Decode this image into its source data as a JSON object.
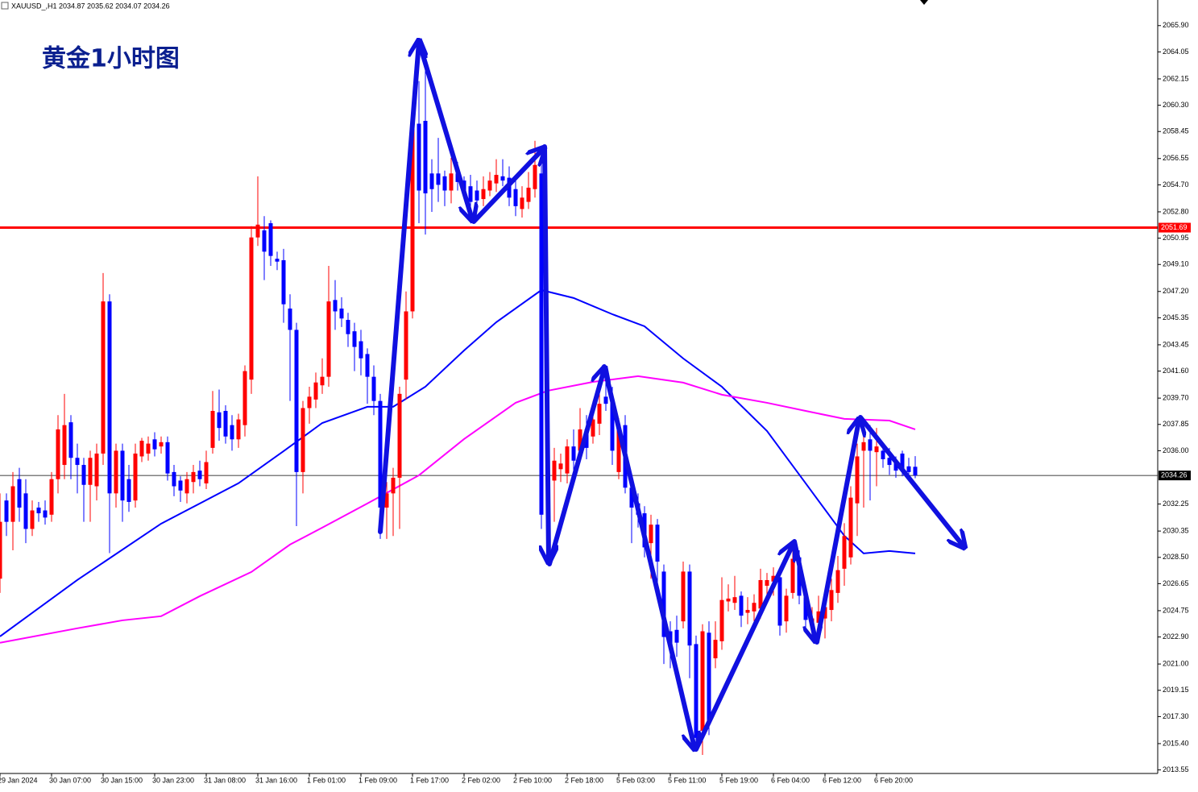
{
  "chart_data": {
    "type": "candlestick",
    "title": "XAUUSD_,H1 2034.87 2035.62 2034.07 2034.26",
    "annotation": "黄金1小时图",
    "up_color": "#ff0000",
    "down_color": "#0000ff",
    "categories": [
      "29 Jan 2024",
      null,
      null,
      null,
      null,
      null,
      null,
      null,
      "30 Jan 07:00",
      null,
      null,
      null,
      null,
      null,
      null,
      null,
      "30 Jan 15:00",
      null,
      null,
      null,
      null,
      null,
      null,
      null,
      "30 Jan 23:00",
      null,
      null,
      null,
      null,
      null,
      null,
      null,
      "31 Jan 08:00",
      null,
      null,
      null,
      null,
      null,
      null,
      null,
      "31 Jan 16:00",
      null,
      null,
      null,
      null,
      null,
      null,
      null,
      "1 Feb 01:00",
      null,
      null,
      null,
      null,
      null,
      null,
      null,
      "1 Feb 09:00",
      null,
      null,
      null,
      null,
      null,
      null,
      null,
      "1 Feb 17:00",
      null,
      null,
      null,
      null,
      null,
      null,
      null,
      "2 Feb 02:00",
      null,
      null,
      null,
      null,
      null,
      null,
      null,
      "2 Feb 10:00",
      null,
      null,
      null,
      null,
      null,
      null,
      null,
      "2 Feb 18:00",
      null,
      null,
      null,
      null,
      null,
      null,
      null,
      "5 Feb 03:00",
      null,
      null,
      null,
      null,
      null,
      null,
      null,
      "5 Feb 11:00",
      null,
      null,
      null,
      null,
      null,
      null,
      null,
      "5 Feb 19:00",
      null,
      null,
      null,
      null,
      null,
      null,
      null,
      "6 Feb 04:00",
      null,
      null,
      null,
      null,
      null,
      null,
      null,
      "6 Feb 12:00",
      null,
      null,
      null,
      null,
      null,
      null,
      null,
      "6 Feb 20:00",
      null,
      null,
      null,
      null,
      null,
      null
    ],
    "ohlc": [
      [
        2027,
        2033,
        2026,
        2031
      ],
      [
        2032.5,
        2033,
        2030,
        2031
      ],
      [
        2031,
        2034.5,
        2029,
        2033.5
      ],
      [
        2034,
        2034.8,
        2031,
        2032
      ],
      [
        2033,
        2034,
        2029.5,
        2030.5
      ],
      [
        2030.5,
        2032.5,
        2030,
        2031.8
      ],
      [
        2032,
        2032.4,
        2031,
        2031.6
      ],
      [
        2031.8,
        2032.5,
        2030.8,
        2031.3
      ],
      [
        2031.5,
        2034.5,
        2031,
        2034
      ],
      [
        2034,
        2038.5,
        2033,
        2037.5
      ],
      [
        2035,
        2040,
        2034,
        2037.8
      ],
      [
        2038,
        2038.5,
        2034,
        2035.5
      ],
      [
        2035.5,
        2036.5,
        2033,
        2035
      ],
      [
        2035,
        2035.5,
        2031,
        2033.6
      ],
      [
        2033.6,
        2036,
        2031,
        2035.5
      ],
      [
        2033.5,
        2036.5,
        2032.5,
        2035.8
      ],
      [
        2035.8,
        2048.5,
        2035,
        2046.5
      ],
      [
        2046.5,
        2047,
        2028.8,
        2033
      ],
      [
        2033,
        2036.5,
        2032,
        2036
      ],
      [
        2036,
        2036.5,
        2031,
        2032.5
      ],
      [
        2034,
        2035,
        2031.7,
        2032.4
      ],
      [
        2032.5,
        2036.5,
        2032,
        2035.8
      ],
      [
        2035.6,
        2036.9,
        2035.2,
        2036.7
      ],
      [
        2035.8,
        2037,
        2035.3,
        2036.5
      ],
      [
        2036.8,
        2037.3,
        2035.6,
        2036.1
      ],
      [
        2036.3,
        2037,
        2035.8,
        2036.6
      ],
      [
        2036.6,
        2037,
        2033.9,
        2034.4
      ],
      [
        2034.5,
        2035,
        2032.8,
        2033.5
      ],
      [
        2033.9,
        2034.2,
        2032.4,
        2033.2
      ],
      [
        2033,
        2034.5,
        2032.3,
        2034
      ],
      [
        2033.8,
        2035,
        2033,
        2034.5
      ],
      [
        2034.6,
        2035.3,
        2033.5,
        2034
      ],
      [
        2033.7,
        2036,
        2033.3,
        2035.2
      ],
      [
        2036.2,
        2040.2,
        2035.8,
        2038.8
      ],
      [
        2038.7,
        2040.3,
        2036.7,
        2037.6
      ],
      [
        2038.8,
        2039.2,
        2036.5,
        2037
      ],
      [
        2037.8,
        2038.5,
        2036,
        2036.8
      ],
      [
        2036.8,
        2038.6,
        2036.2,
        2038.2
      ],
      [
        2037.8,
        2042,
        2037,
        2041.6
      ],
      [
        2041,
        2051.8,
        2040,
        2051
      ],
      [
        2051,
        2055.3,
        2050.4,
        2051.9
      ],
      [
        2051.5,
        2052.5,
        2048,
        2050
      ],
      [
        2052,
        2052.2,
        2049,
        2049.7
      ],
      [
        2049.5,
        2050,
        2048.7,
        2049.3
      ],
      [
        2049.4,
        2050.2,
        2045,
        2046.3
      ],
      [
        2046,
        2047,
        2039.5,
        2044.5
      ],
      [
        2044.5,
        2045,
        2030.7,
        2034.5
      ],
      [
        2034.5,
        2039.5,
        2033,
        2039
      ],
      [
        2039,
        2040.5,
        2037.9,
        2039.8
      ],
      [
        2039.6,
        2041.5,
        2039,
        2040.8
      ],
      [
        2040.6,
        2042.5,
        2040,
        2041.2
      ],
      [
        2041.2,
        2049,
        2040.5,
        2046.5
      ],
      [
        2046.6,
        2048,
        2044.5,
        2045.8
      ],
      [
        2046,
        2046.8,
        2044.7,
        2045.3
      ],
      [
        2045.2,
        2045.7,
        2043.3,
        2044.2
      ],
      [
        2044.4,
        2045,
        2041.6,
        2043.3
      ],
      [
        2043.7,
        2044.5,
        2041.3,
        2042.5
      ],
      [
        2042.8,
        2043.2,
        2039.3,
        2041.2
      ],
      [
        2041.2,
        2042,
        2038.5,
        2039.5
      ],
      [
        2039.5,
        2040,
        2029.8,
        2032
      ],
      [
        2032,
        2033.8,
        2029.8,
        2033
      ],
      [
        2033,
        2034.8,
        2030,
        2034.1
      ],
      [
        2034.1,
        2040.5,
        2030.5,
        2040
      ],
      [
        2041,
        2047.2,
        2039.6,
        2045.8
      ],
      [
        2045.8,
        2060.3,
        2045.3,
        2059.2
      ],
      [
        2059,
        2062,
        2052,
        2054.3
      ],
      [
        2059.2,
        2063.5,
        2051.2,
        2054.1
      ],
      [
        2055.5,
        2056.5,
        2052.8,
        2054.4
      ],
      [
        2055.5,
        2058,
        2053.5,
        2054.7
      ],
      [
        2055.3,
        2055.7,
        2053.2,
        2054.3
      ],
      [
        2054.3,
        2056.6,
        2053.4,
        2055.5
      ],
      [
        2055.5,
        2056.3,
        2054.3,
        2054.9
      ],
      [
        2055,
        2055.3,
        2053.8,
        2054.3
      ],
      [
        2054.6,
        2055.4,
        2053,
        2053.5
      ],
      [
        2054.3,
        2055,
        2053,
        2053.6
      ],
      [
        2053.7,
        2055.3,
        2053.2,
        2054.4
      ],
      [
        2054.3,
        2055.6,
        2053.9,
        2055
      ],
      [
        2054.8,
        2056.5,
        2054.2,
        2055.4
      ],
      [
        2055.3,
        2056.5,
        2054.6,
        2055
      ],
      [
        2055.2,
        2056,
        2053.2,
        2053.8
      ],
      [
        2054.4,
        2055,
        2052.5,
        2053.2
      ],
      [
        2053,
        2054.6,
        2052.4,
        2053.8
      ],
      [
        2053.5,
        2055.6,
        2053,
        2054.5
      ],
      [
        2054.4,
        2057.8,
        2053.8,
        2056.1
      ],
      [
        2055.5,
        2057,
        2030.5,
        2031.5
      ],
      [
        2034.8,
        2036.2,
        2030.2,
        2031.5
      ],
      [
        2033.9,
        2036.2,
        2031,
        2035.3
      ],
      [
        2034.7,
        2035.8,
        2033.8,
        2035.1
      ],
      [
        2034.4,
        2036.8,
        2033.7,
        2036.3
      ],
      [
        2036.3,
        2037.5,
        2034.5,
        2035.3
      ],
      [
        2036,
        2039,
        2035.5,
        2037.5
      ],
      [
        2037.5,
        2038.5,
        2035.4,
        2036.2
      ],
      [
        2037,
        2039.5,
        2036.5,
        2038.2
      ],
      [
        2037.9,
        2041,
        2037.1,
        2039.3
      ],
      [
        2039.8,
        2041.8,
        2038.8,
        2039.3
      ],
      [
        2039.6,
        2040.5,
        2035,
        2036
      ],
      [
        2034.5,
        2038.3,
        2034,
        2037.8
      ],
      [
        2037.8,
        2038.5,
        2033,
        2033.4
      ],
      [
        2033.4,
        2034,
        2029.5,
        2032
      ],
      [
        2032.3,
        2033,
        2030.6,
        2031.5
      ],
      [
        2031.6,
        2032.1,
        2028.5,
        2029.2
      ],
      [
        2029.5,
        2031.5,
        2027,
        2030.8
      ],
      [
        2030.8,
        2031.2,
        2026.6,
        2028.2
      ],
      [
        2027.5,
        2028,
        2021,
        2022.9
      ],
      [
        2023.3,
        2024,
        2020.7,
        2022.3
      ],
      [
        2023.4,
        2024.4,
        2021.5,
        2022.5
      ],
      [
        2024,
        2028.2,
        2023.5,
        2027.5
      ],
      [
        2027.5,
        2028,
        2020,
        2022.3
      ],
      [
        2022.4,
        2023,
        2015,
        2015.8
      ],
      [
        2016.3,
        2023.8,
        2014.6,
        2023.3
      ],
      [
        2023.2,
        2024,
        2016,
        2016.8
      ],
      [
        2021.4,
        2024,
        2020.7,
        2022.7
      ],
      [
        2022.6,
        2027.1,
        2022,
        2025.5
      ],
      [
        2025.4,
        2026.6,
        2024.7,
        2025.6
      ],
      [
        2025.3,
        2027.2,
        2024.8,
        2025.7
      ],
      [
        2025.8,
        2026.1,
        2023.6,
        2024.4
      ],
      [
        2024.6,
        2025.7,
        2023.8,
        2024.8
      ],
      [
        2024.7,
        2025.9,
        2024,
        2025.3
      ],
      [
        2024.9,
        2027.7,
        2024.2,
        2026.9
      ],
      [
        2026.5,
        2027.4,
        2025.8,
        2026.9
      ],
      [
        2026.8,
        2027.8,
        2025.8,
        2027.2
      ],
      [
        2027.1,
        2027.8,
        2023,
        2023.7
      ],
      [
        2024,
        2026.3,
        2023.2,
        2025.8
      ],
      [
        2026,
        2029.4,
        2025.6,
        2028.4
      ],
      [
        2028.5,
        2029,
        2025.2,
        2025.8
      ],
      [
        2025.7,
        2026.5,
        2023.4,
        2024.1
      ],
      [
        2023.8,
        2025,
        2022.8,
        2024.2
      ],
      [
        2023.9,
        2025.8,
        2023.2,
        2024.7
      ],
      [
        2024.2,
        2025.8,
        2022.8,
        2025
      ],
      [
        2024.8,
        2027,
        2024,
        2026.2
      ],
      [
        2026,
        2028.6,
        2025.3,
        2027.6
      ],
      [
        2027.7,
        2030.9,
        2026.5,
        2030
      ],
      [
        2028.5,
        2033.5,
        2028,
        2032.7
      ],
      [
        2032.3,
        2036.5,
        2030,
        2035.6
      ],
      [
        2036,
        2038.3,
        2032,
        2036.6
      ],
      [
        2036.8,
        2037.8,
        2032.5,
        2036
      ],
      [
        2035.9,
        2037.6,
        2033.5,
        2036.3
      ],
      [
        2036,
        2036.5,
        2034.8,
        2035.4
      ],
      [
        2035.5,
        2036.2,
        2034.3,
        2035
      ],
      [
        2035.3,
        2035.6,
        2034.1,
        2034.6
      ],
      [
        2035.8,
        2036,
        2034.2,
        2034.7
      ],
      [
        2034.9,
        2035.5,
        2034.1,
        2034.5
      ],
      [
        2034.87,
        2035.62,
        2034.07,
        2034.26
      ]
    ],
    "series": [
      {
        "color": "#0000ff",
        "x": [
          0,
          12,
          25,
          37,
          44,
          50,
          57,
          61,
          66,
          72,
          77,
          84,
          89,
          95,
          100,
          106,
          112,
          119,
          125,
          131,
          134,
          138,
          142
        ],
        "values": [
          2022.94,
          2026.91,
          2030.87,
          2033.71,
          2035.97,
          2037.95,
          2039.09,
          2039.09,
          2040.5,
          2043.05,
          2045.04,
          2047.3,
          2046.74,
          2045.6,
          2044.75,
          2042.49,
          2040.5,
          2037.39,
          2033.71,
          2030.02,
          2028.78,
          2028.95,
          2028.78
        ]
      },
      {
        "color": "#ff00ff",
        "x": [
          0,
          12,
          19,
          25,
          31,
          39,
          45,
          50,
          57,
          65,
          72,
          80,
          85,
          92,
          99,
          106,
          112,
          119,
          125,
          131,
          138,
          142
        ],
        "values": [
          2022.49,
          2023.51,
          2024.07,
          2024.36,
          2025.77,
          2027.47,
          2029.4,
          2030.59,
          2032.29,
          2034.27,
          2036.82,
          2039.37,
          2040.22,
          2040.84,
          2041.24,
          2040.79,
          2039.94,
          2039.37,
          2038.8,
          2038.24,
          2038.12,
          2037.5
        ]
      }
    ],
    "hline": {
      "value": 2051.69,
      "color": "#ff0000"
    },
    "last_price": 2034.26,
    "ylim": [
      2013.3,
      2067.7
    ],
    "yticks": [
      {
        "value": 2065.9,
        "label": "2065.90"
      },
      {
        "value": 2064.05,
        "label": "2064.05"
      },
      {
        "value": 2062.15,
        "label": "2062.15"
      },
      {
        "value": 2060.3,
        "label": "2060.30"
      },
      {
        "value": 2058.45,
        "label": "2058.45"
      },
      {
        "value": 2056.55,
        "label": "2056.55"
      },
      {
        "value": 2054.7,
        "label": "2054.70"
      },
      {
        "value": 2052.8,
        "label": "2052.80"
      },
      {
        "value": 2050.95,
        "label": "2050.95"
      },
      {
        "value": 2049.1,
        "label": "2049.10"
      },
      {
        "value": 2047.2,
        "label": "2047.20"
      },
      {
        "value": 2045.35,
        "label": "2045.35"
      },
      {
        "value": 2043.45,
        "label": "2043.45"
      },
      {
        "value": 2041.6,
        "label": "2041.60"
      },
      {
        "value": 2039.7,
        "label": "2039.70"
      },
      {
        "value": 2037.85,
        "label": "2037.85"
      },
      {
        "value": 2036,
        "label": "2036.00"
      },
      {
        "value": 2032.25,
        "label": "2032.25"
      },
      {
        "value": 2030.35,
        "label": "2030.35"
      },
      {
        "value": 2028.5,
        "label": "2028.50"
      },
      {
        "value": 2026.65,
        "label": "2026.65"
      },
      {
        "value": 2024.75,
        "label": "2024.75"
      },
      {
        "value": 2022.9,
        "label": "2022.90"
      },
      {
        "value": 2021,
        "label": "2021.00"
      },
      {
        "value": 2019.15,
        "label": "2019.15"
      },
      {
        "value": 2017.3,
        "label": "2017.30"
      },
      {
        "value": 2015.4,
        "label": "2015.40"
      },
      {
        "value": 2013.55,
        "label": "2013.55"
      }
    ]
  }
}
